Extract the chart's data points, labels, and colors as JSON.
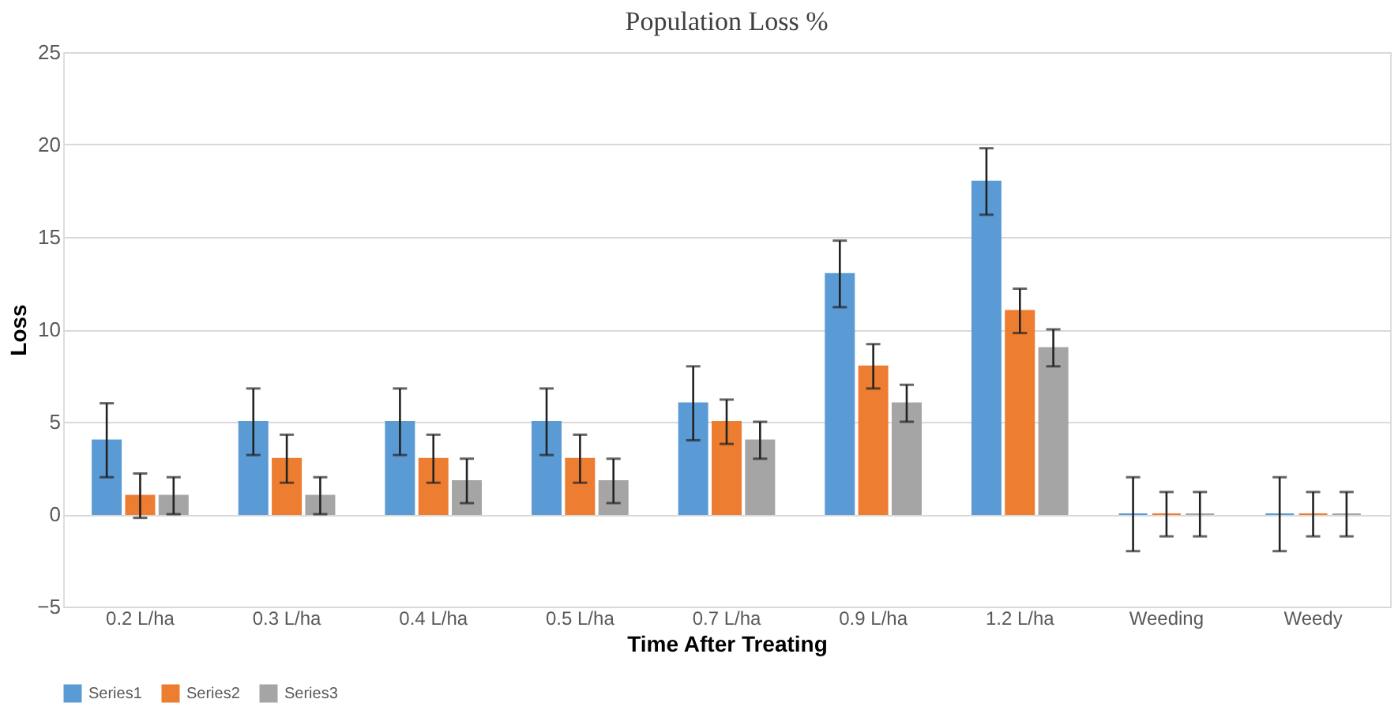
{
  "chart_data": {
    "type": "bar",
    "title": "Population Loss %",
    "xlabel": "Time After Treating",
    "ylabel": "Loss",
    "categories": [
      "0.2 L/ha",
      "0.3 L/ha",
      "0.4 L/ha",
      "0.5 L/ha",
      "0.7 L/ha",
      "0.9 L/ha",
      "1.2 L/ha",
      "Weeding",
      "Weedy"
    ],
    "series": [
      {
        "name": "Series1",
        "color": "#5b9bd5",
        "values": [
          4,
          5,
          5,
          5,
          6,
          13,
          18,
          0,
          0
        ],
        "errors": [
          2,
          1.8,
          1.8,
          1.8,
          2,
          1.8,
          1.8,
          2,
          2
        ]
      },
      {
        "name": "Series2",
        "color": "#ed7d31",
        "values": [
          1,
          3,
          3,
          3,
          5,
          8,
          11,
          0,
          0
        ],
        "errors": [
          1.2,
          1.3,
          1.3,
          1.3,
          1.2,
          1.2,
          1.2,
          1.2,
          1.2
        ]
      },
      {
        "name": "Series3",
        "color": "#a5a5a5",
        "values": [
          1,
          1,
          1.8,
          1.8,
          4,
          6,
          9,
          0,
          0
        ],
        "errors": [
          1,
          1,
          1.2,
          1.2,
          1,
          1,
          1,
          1.2,
          1.2
        ]
      }
    ],
    "ylim": [
      -5,
      25
    ],
    "yticks": [
      -5,
      0,
      5,
      10,
      15,
      20,
      25
    ],
    "grid": "y",
    "legend": "bottom"
  }
}
